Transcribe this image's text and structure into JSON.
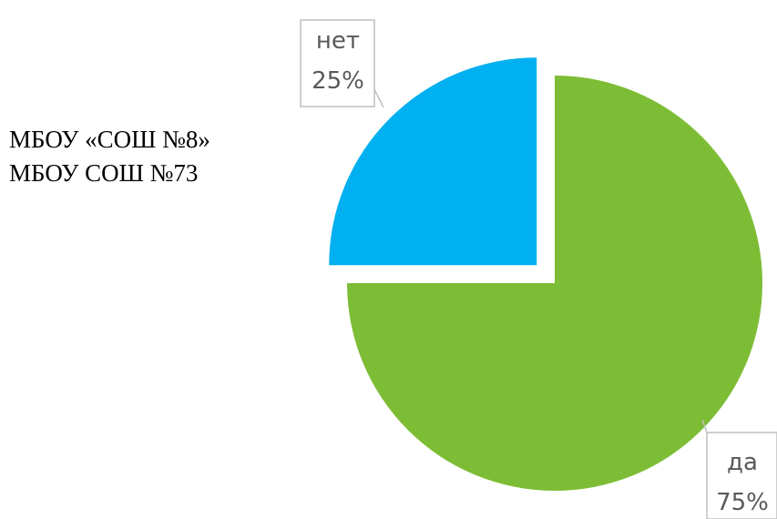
{
  "text_lines": [
    "МБОУ «СОШ №8»",
    "МБОУ СОШ №73"
  ],
  "chart_data": {
    "type": "pie",
    "title": "",
    "slices": [
      {
        "label": "нет",
        "value": 25,
        "display": "25%",
        "color": "#00B0F0"
      },
      {
        "label": "да",
        "value": 75,
        "display": "75%",
        "color": "#7DBD35"
      }
    ],
    "exploded": true,
    "legend": "none"
  }
}
